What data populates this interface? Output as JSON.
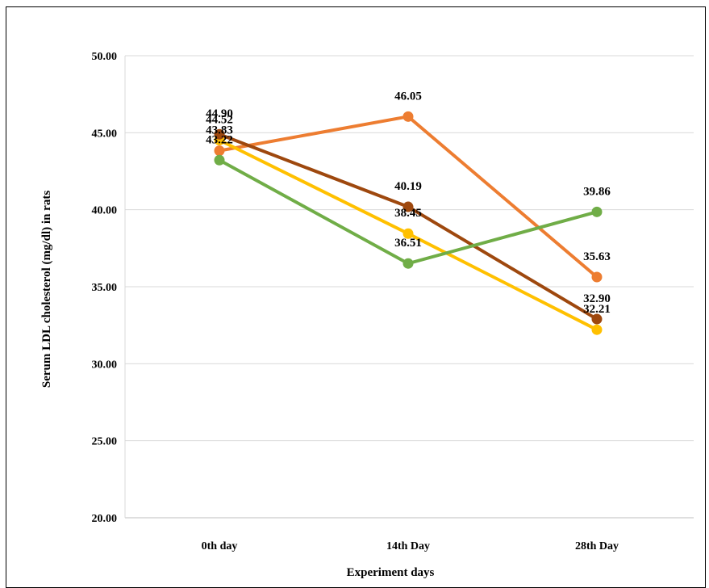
{
  "chart_data": {
    "type": "line",
    "categories": [
      "0th day",
      "14th Day",
      "28th Day"
    ],
    "series": [
      {
        "values": [
          43.83,
          46.05,
          35.63
        ],
        "color": "#ED7D31"
      },
      {
        "values": [
          44.52,
          38.45,
          32.21
        ],
        "color": "#FFC000"
      },
      {
        "values": [
          44.9,
          40.19,
          32.9
        ],
        "color": "#9E480E"
      },
      {
        "values": [
          43.22,
          36.51,
          39.86
        ],
        "color": "#70AD47"
      }
    ],
    "ylim": [
      20,
      50
    ],
    "yticks": [
      "20.00",
      "25.00",
      "30.00",
      "35.00",
      "40.00",
      "45.00",
      "50.00"
    ],
    "xlabel": "Experiment days",
    "ylabel": "Serum LDL cholesterol (mg/dl) in rats",
    "grid": true,
    "data_labels": true,
    "label_format": "2dp",
    "gridline_color": "#D9D9D9"
  }
}
